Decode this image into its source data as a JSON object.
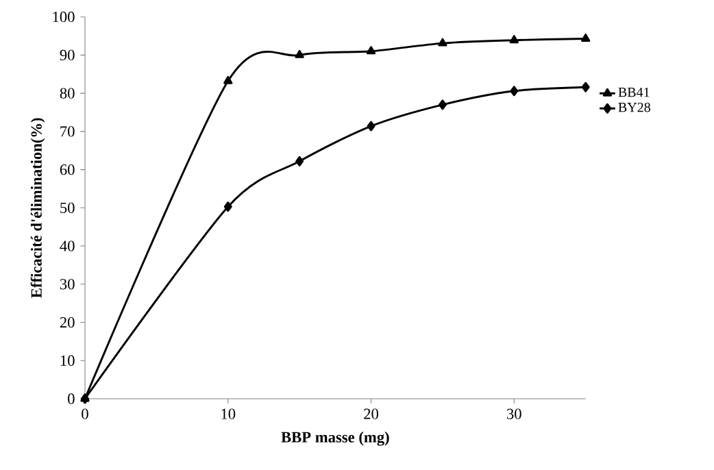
{
  "chart_data": {
    "type": "line",
    "xlabel": "BBP masse (mg)",
    "ylabel": "Efficacité d'élimination(%)",
    "x": [
      0,
      10,
      15,
      20,
      25,
      30,
      35
    ],
    "series": [
      {
        "name": "BB41",
        "color": "#000000",
        "marker": "triangle",
        "values": [
          0,
          83.2,
          90.0,
          91.0,
          93.1,
          93.9,
          94.3
        ]
      },
      {
        "name": "BY28",
        "color": "#000000",
        "marker": "diamond",
        "values": [
          0,
          50.3,
          62.2,
          71.4,
          77.0,
          80.6,
          81.6
        ]
      }
    ],
    "xlim": [
      0,
      35
    ],
    "xticks": [
      0,
      10,
      20,
      30
    ],
    "ylim": [
      0,
      100
    ],
    "yticks": [
      0,
      10,
      20,
      30,
      40,
      50,
      60,
      70,
      80,
      90,
      100
    ],
    "grid": false,
    "legend": "right",
    "line_style": "solid"
  }
}
